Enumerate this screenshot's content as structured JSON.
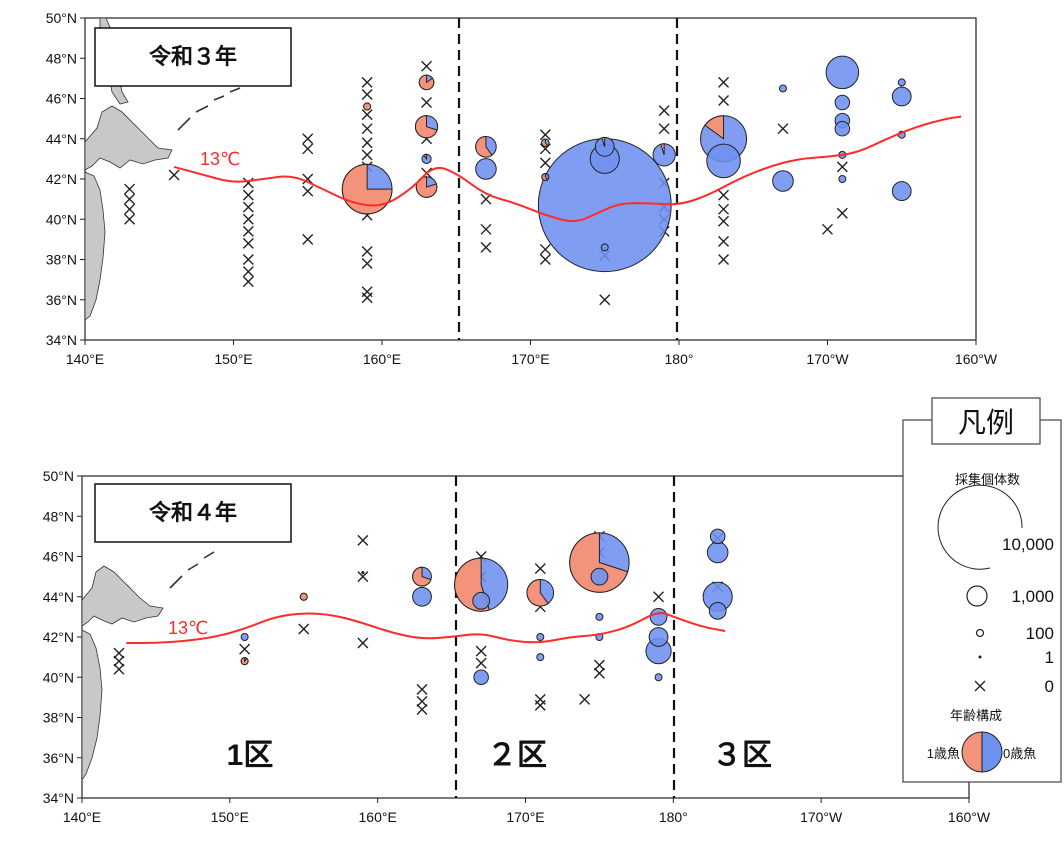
{
  "chart_data": [
    {
      "type": "scatter",
      "subtype": "bubble-map",
      "title": "令和３年",
      "x_ticks": [
        "140°E",
        "150°E",
        "160°E",
        "170°E",
        "180°",
        "170°W",
        "160°W"
      ],
      "y_ticks": [
        "34°N",
        "36°N",
        "38°N",
        "40°N",
        "42°N",
        "44°N",
        "46°N",
        "48°N",
        "50°N"
      ],
      "xlim": [
        140,
        200
      ],
      "ylim": [
        34,
        50
      ],
      "longitude_convention": "degrees east (180 = 180°, 190 = 170°W, 200 = 160°W)",
      "zone_dividers_lon": [
        165.2,
        180
      ],
      "isotherm": {
        "label": "13℃",
        "points": [
          [
            146,
            42.6
          ],
          [
            148,
            42.2
          ],
          [
            150,
            41.8
          ],
          [
            152,
            42.0
          ],
          [
            154,
            42.2
          ],
          [
            156,
            41.5
          ],
          [
            158,
            40.8
          ],
          [
            160,
            40.6
          ],
          [
            162,
            41.5
          ],
          [
            163.5,
            42.7
          ],
          [
            165,
            42.3
          ],
          [
            167,
            41.2
          ],
          [
            169,
            40.8
          ],
          [
            171,
            40.2
          ],
          [
            173,
            39.8
          ],
          [
            174.5,
            40.3
          ],
          [
            176,
            40.8
          ],
          [
            178,
            40.8
          ],
          [
            180,
            40.7
          ],
          [
            182,
            41.2
          ],
          [
            184,
            42.0
          ],
          [
            186,
            42.6
          ],
          [
            188,
            43.0
          ],
          [
            190,
            43.1
          ],
          [
            192,
            43.3
          ],
          [
            194,
            44.0
          ],
          [
            196,
            44.6
          ],
          [
            198,
            45.0
          ],
          [
            199,
            45.1
          ]
        ]
      },
      "samples": [
        {
          "lon": 159,
          "lat": 41.5,
          "count": 3500,
          "age1_share": 0.75
        },
        {
          "lon": 163,
          "lat": 46.8,
          "count": 300,
          "age1_share": 0.85
        },
        {
          "lon": 163,
          "lat": 44.6,
          "count": 700,
          "age1_share": 0.7
        },
        {
          "lon": 163,
          "lat": 41.6,
          "count": 600,
          "age1_share": 0.8
        },
        {
          "lon": 163,
          "lat": 43.0,
          "count": 120,
          "age1_share": 0.1
        },
        {
          "lon": 159,
          "lat": 45.6,
          "count": 15,
          "age1_share": 1.0
        },
        {
          "lon": 167,
          "lat": 43.6,
          "count": 600,
          "age1_share": 0.6
        },
        {
          "lon": 167,
          "lat": 42.5,
          "count": 600,
          "age1_share": 0.0
        },
        {
          "lon": 171,
          "lat": 43.8,
          "count": 80,
          "age1_share": 0.6
        },
        {
          "lon": 171,
          "lat": 42.1,
          "count": 60,
          "age1_share": 0.6
        },
        {
          "lon": 175,
          "lat": 43.6,
          "count": 500,
          "age1_share": 0.05
        },
        {
          "lon": 175,
          "lat": 43.0,
          "count": 1200,
          "age1_share": 0.0
        },
        {
          "lon": 175,
          "lat": 40.7,
          "count": 25000,
          "age1_share": 0.0
        },
        {
          "lon": 175,
          "lat": 38.6,
          "count": 60,
          "age1_share": 0.0
        },
        {
          "lon": 179,
          "lat": 43.2,
          "count": 700,
          "age1_share": 0.05
        },
        {
          "lon": 183,
          "lat": 44.0,
          "count": 3000,
          "age1_share": 0.15
        },
        {
          "lon": 183,
          "lat": 42.9,
          "count": 1600,
          "age1_share": 0.0
        },
        {
          "lon": 187,
          "lat": 46.5,
          "count": 15,
          "age1_share": 0.0
        },
        {
          "lon": 187,
          "lat": 41.9,
          "count": 600,
          "age1_share": 0.0
        },
        {
          "lon": 191,
          "lat": 47.3,
          "count": 1500,
          "age1_share": 0.0
        },
        {
          "lon": 191,
          "lat": 45.8,
          "count": 300,
          "age1_share": 0.0
        },
        {
          "lon": 191,
          "lat": 44.9,
          "count": 300,
          "age1_share": 0.0
        },
        {
          "lon": 191,
          "lat": 44.5,
          "count": 300,
          "age1_share": 0.0
        },
        {
          "lon": 191,
          "lat": 43.2,
          "count": 30,
          "age1_share": 0.0
        },
        {
          "lon": 191,
          "lat": 42.0,
          "count": 30,
          "age1_share": 0.0
        },
        {
          "lon": 195,
          "lat": 46.1,
          "count": 500,
          "age1_share": 0.0
        },
        {
          "lon": 195,
          "lat": 41.4,
          "count": 500,
          "age1_share": 0.0
        },
        {
          "lon": 195,
          "lat": 44.2,
          "count": 40,
          "age1_share": 0.0
        },
        {
          "lon": 195,
          "lat": 46.8,
          "count": 40,
          "age1_share": 0.0
        }
      ],
      "zero_catch": [
        [
          143,
          41.5
        ],
        [
          143,
          41.0
        ],
        [
          143,
          40.5
        ],
        [
          143,
          40.0
        ],
        [
          146,
          42.2
        ],
        [
          151,
          41.8
        ],
        [
          151,
          41.2
        ],
        [
          151,
          40.6
        ],
        [
          151,
          40.0
        ],
        [
          151,
          39.4
        ],
        [
          151,
          38.8
        ],
        [
          151,
          38.0
        ],
        [
          151,
          37.4
        ],
        [
          151,
          36.9
        ],
        [
          155,
          44.0
        ],
        [
          155,
          43.5
        ],
        [
          155,
          42.0
        ],
        [
          155,
          41.4
        ],
        [
          155,
          39.0
        ],
        [
          159,
          46.8
        ],
        [
          159,
          46.2
        ],
        [
          159,
          45.2
        ],
        [
          159,
          44.5
        ],
        [
          159,
          43.8
        ],
        [
          159,
          43.2
        ],
        [
          159,
          42.6
        ],
        [
          159,
          40.2
        ],
        [
          159,
          38.4
        ],
        [
          159,
          37.8
        ],
        [
          159,
          36.4
        ],
        [
          159,
          36.1
        ],
        [
          163,
          47.6
        ],
        [
          163,
          45.8
        ],
        [
          163,
          44.0
        ],
        [
          163,
          42.3
        ],
        [
          167,
          41.0
        ],
        [
          167,
          39.5
        ],
        [
          167,
          38.6
        ],
        [
          171,
          44.2
        ],
        [
          171,
          43.5
        ],
        [
          171,
          42.8
        ],
        [
          171,
          38.5
        ],
        [
          171,
          38.0
        ],
        [
          175,
          38.2
        ],
        [
          175,
          36.0
        ],
        [
          179,
          45.4
        ],
        [
          179,
          44.5
        ],
        [
          179,
          41.8
        ],
        [
          179,
          40.6
        ],
        [
          179,
          40.0
        ],
        [
          179,
          39.4
        ],
        [
          183,
          46.8
        ],
        [
          183,
          45.9
        ],
        [
          183,
          41.2
        ],
        [
          183,
          40.5
        ],
        [
          183,
          39.9
        ],
        [
          183,
          38.9
        ],
        [
          183,
          38.0
        ],
        [
          187,
          44.5
        ],
        [
          191,
          40.3
        ],
        [
          190,
          39.5
        ],
        [
          191,
          42.6
        ]
      ]
    },
    {
      "type": "scatter",
      "subtype": "bubble-map",
      "title": "令和４年",
      "x_ticks": [
        "140°E",
        "150°E",
        "160°E",
        "170°E",
        "180°",
        "170°W",
        "160°W"
      ],
      "y_ticks": [
        "34°N",
        "36°N",
        "38°N",
        "40°N",
        "42°N",
        "44°N",
        "46°N",
        "48°N",
        "50°N"
      ],
      "xlim": [
        140,
        200
      ],
      "ylim": [
        34,
        50
      ],
      "longitude_convention": "degrees east (180 = 180°, 190 = 170°W, 200 = 160°W)",
      "zone_dividers_lon": [
        165.2,
        180
      ],
      "zone_labels": [
        "1区",
        "２区",
        "３区"
      ],
      "isotherm": {
        "label": "13℃",
        "points": [
          [
            143,
            41.7
          ],
          [
            145,
            41.7
          ],
          [
            147,
            41.8
          ],
          [
            149,
            42.0
          ],
          [
            151,
            42.4
          ],
          [
            153,
            43.0
          ],
          [
            155,
            43.2
          ],
          [
            157,
            43.1
          ],
          [
            159,
            42.7
          ],
          [
            161,
            42.2
          ],
          [
            163,
            41.9
          ],
          [
            165,
            42.0
          ],
          [
            167,
            42.2
          ],
          [
            169,
            41.8
          ],
          [
            171,
            41.7
          ],
          [
            173,
            42.0
          ],
          [
            175,
            42.1
          ],
          [
            177,
            42.5
          ],
          [
            179,
            43.3
          ],
          [
            180,
            43.0
          ],
          [
            182,
            42.5
          ],
          [
            183.5,
            42.3
          ]
        ]
      },
      "samples": [
        {
          "lon": 151,
          "lat": 40.8,
          "count": 30,
          "age1_share": 0.9
        },
        {
          "lon": 151,
          "lat": 42.0,
          "count": 20,
          "age1_share": 0.0
        },
        {
          "lon": 155,
          "lat": 44.0,
          "count": 25,
          "age1_share": 1.0
        },
        {
          "lon": 159,
          "lat": 45.2,
          "count": 8,
          "age1_share": 0.0
        },
        {
          "lon": 163,
          "lat": 45.0,
          "count": 500,
          "age1_share": 0.7
        },
        {
          "lon": 163,
          "lat": 44.0,
          "count": 500,
          "age1_share": 0.0
        },
        {
          "lon": 167,
          "lat": 44.6,
          "count": 4000,
          "age1_share": 0.55
        },
        {
          "lon": 167,
          "lat": 43.8,
          "count": 400,
          "age1_share": 0.0
        },
        {
          "lon": 167,
          "lat": 40.0,
          "count": 300,
          "age1_share": 0.0
        },
        {
          "lon": 171,
          "lat": 44.2,
          "count": 1000,
          "age1_share": 0.6
        },
        {
          "lon": 171,
          "lat": 42.0,
          "count": 20,
          "age1_share": 0.0
        },
        {
          "lon": 171,
          "lat": 41.0,
          "count": 20,
          "age1_share": 0.0
        },
        {
          "lon": 175,
          "lat": 45.7,
          "count": 5000,
          "age1_share": 0.7
        },
        {
          "lon": 175,
          "lat": 45.0,
          "count": 400,
          "age1_share": 0.0
        },
        {
          "lon": 175,
          "lat": 43.0,
          "count": 60,
          "age1_share": 0.0
        },
        {
          "lon": 175,
          "lat": 42.0,
          "count": 30,
          "age1_share": 0.0
        },
        {
          "lon": 179,
          "lat": 43.0,
          "count": 400,
          "age1_share": 0.0
        },
        {
          "lon": 179,
          "lat": 42.0,
          "count": 500,
          "age1_share": 0.0
        },
        {
          "lon": 179,
          "lat": 41.3,
          "count": 900,
          "age1_share": 0.0
        },
        {
          "lon": 179,
          "lat": 40.0,
          "count": 30,
          "age1_share": 0.0
        },
        {
          "lon": 183,
          "lat": 47.0,
          "count": 300,
          "age1_share": 0.0
        },
        {
          "lon": 183,
          "lat": 46.2,
          "count": 600,
          "age1_share": 0.0
        },
        {
          "lon": 183,
          "lat": 44.0,
          "count": 1200,
          "age1_share": 0.0
        },
        {
          "lon": 183,
          "lat": 43.3,
          "count": 400,
          "age1_share": 0.0
        }
      ],
      "zero_catch": [
        [
          142.5,
          41.2
        ],
        [
          142.5,
          40.8
        ],
        [
          142.5,
          40.4
        ],
        [
          151,
          41.4
        ],
        [
          155,
          42.4
        ],
        [
          159,
          46.8
        ],
        [
          159,
          45.0
        ],
        [
          159,
          41.7
        ],
        [
          163,
          39.4
        ],
        [
          163,
          38.8
        ],
        [
          163,
          38.4
        ],
        [
          167,
          46.0
        ],
        [
          167,
          45.0
        ],
        [
          167,
          41.3
        ],
        [
          167,
          40.7
        ],
        [
          171,
          45.4
        ],
        [
          171,
          43.5
        ],
        [
          171,
          38.9
        ],
        [
          171,
          38.6
        ],
        [
          175,
          47.0
        ],
        [
          175,
          46.2
        ],
        [
          175,
          40.6
        ],
        [
          175,
          40.2
        ],
        [
          174,
          38.9
        ],
        [
          179,
          44.0
        ],
        [
          183,
          46.9
        ],
        [
          183,
          44.5
        ]
      ]
    }
  ],
  "legend": {
    "title": "凡例",
    "count_heading": "採集個体数",
    "count_levels": [
      {
        "label": "10,000",
        "count": 10000
      },
      {
        "label": "1,000",
        "count": 1000
      },
      {
        "label": "100",
        "count": 100
      },
      {
        "label": "1",
        "count": 1
      },
      {
        "label": "0",
        "count": 0
      }
    ],
    "age_heading": "年齢構成",
    "age1_label": "1歳魚",
    "age0_label": "0歳魚"
  },
  "colors": {
    "age1": "#f4937c",
    "age0": "#6e91ef",
    "isotherm": "#ff2a2a",
    "land": "#c8c8c8"
  }
}
